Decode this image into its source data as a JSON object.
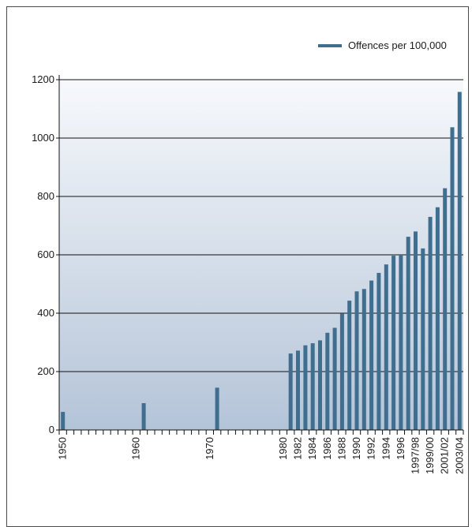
{
  "chart_data": {
    "type": "bar",
    "legend": {
      "label": "Offences per 100,000",
      "placement": "top-right"
    },
    "ylim": [
      0,
      1200
    ],
    "yticks": [
      0,
      200,
      400,
      600,
      800,
      1000,
      1200
    ],
    "grid": true,
    "bar_color": "#3f6e8e",
    "categories": [
      "1950",
      "1951",
      "1952",
      "1953",
      "1954",
      "1955",
      "1956",
      "1957",
      "1958",
      "1959",
      "1960",
      "1961",
      "1962",
      "1963",
      "1964",
      "1965",
      "1966",
      "1967",
      "1968",
      "1969",
      "1970",
      "1971",
      "1972",
      "1973",
      "1974",
      "1975",
      "1976",
      "1977",
      "1978",
      "1979",
      "1980",
      "1981",
      "1982",
      "1983",
      "1984",
      "1985",
      "1986",
      "1987",
      "1988",
      "1989",
      "1990",
      "1991",
      "1992",
      "1993",
      "1994",
      "1995",
      "1996",
      "1997",
      "1997/98",
      "1998/99",
      "1999/00",
      "2000/01",
      "2001/02",
      "2002/03",
      "2003/04"
    ],
    "values": [
      62,
      0,
      0,
      0,
      0,
      0,
      0,
      0,
      0,
      0,
      0,
      92,
      0,
      0,
      0,
      0,
      0,
      0,
      0,
      0,
      0,
      145,
      0,
      0,
      0,
      0,
      0,
      0,
      0,
      0,
      0,
      262,
      272,
      290,
      297,
      307,
      333,
      350,
      398,
      443,
      475,
      483,
      512,
      538,
      567,
      597,
      600,
      662,
      680,
      622,
      730,
      763,
      828,
      1037,
      1158
    ],
    "xtick_labels": [
      "1950",
      "1960",
      "1970",
      "1980",
      "1982",
      "1984",
      "1986",
      "1988",
      "1990",
      "1992",
      "1994",
      "1996",
      "1997/98",
      "1999/00",
      "2001/02",
      "2003/04"
    ]
  }
}
